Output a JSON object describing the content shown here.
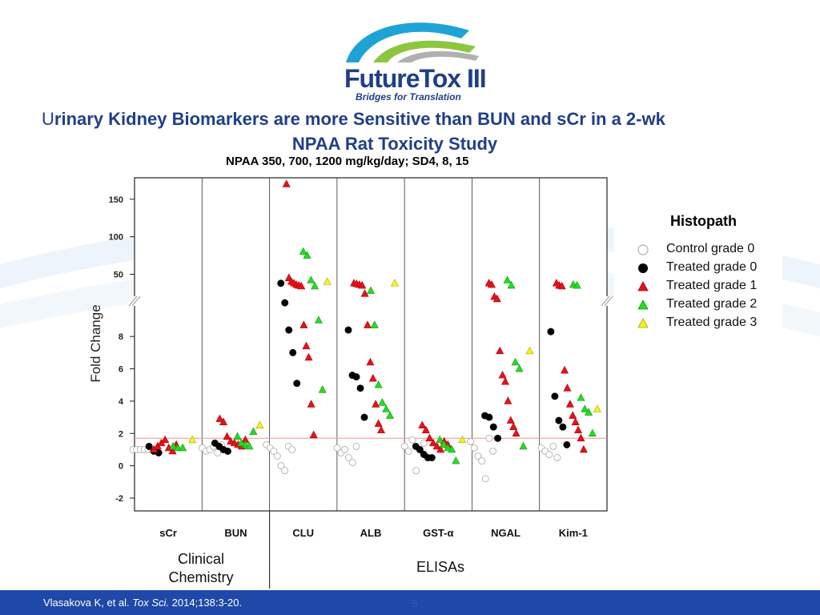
{
  "logo": {
    "name": "FutureTox III",
    "tagline": "Bridges for Translation"
  },
  "slide": {
    "title_initial": "U",
    "title_rest": "rinary Kidney Biomarkers are more Sensitive than BUN and sCr in a 2-wk",
    "title_line2": "NPAA Rat Toxicity Study",
    "subtitle": "NPAA 350, 700, 1200 mg/kg/day; SD4, 8, 15"
  },
  "legend": {
    "title": "Histopath",
    "items": [
      {
        "label": "Control grade  0",
        "shape": "circle",
        "fill": "#ffffff",
        "stroke": "#b0b0b0"
      },
      {
        "label": "Treated grade 0",
        "shape": "circle",
        "fill": "#000000",
        "stroke": "#000000"
      },
      {
        "label": "Treated grade 1",
        "shape": "triangle",
        "fill": "#e8101a",
        "stroke": "#b00000"
      },
      {
        "label": "Treated grade 2",
        "shape": "triangle",
        "fill": "#22dd22",
        "stroke": "#119911"
      },
      {
        "label": "Treated grade 3",
        "shape": "triangle",
        "fill": "#f5f51a",
        "stroke": "#b0a000"
      }
    ]
  },
  "groups": {
    "clinical": "Clinical\nChemistry",
    "elisa": "ELISAs"
  },
  "footer": {
    "citation_authors": "Vlasakova K, et al. ",
    "citation_journal": "Tox Sci.",
    "citation_rest": " 2014;138:3-20.",
    "page_number": "5"
  },
  "colors": {
    "accent_blue": "#1f3f87",
    "footer_blue": "#1f49a8",
    "threshold_line": "#f0a0a0"
  },
  "chart_data": {
    "type": "scatter",
    "title": "",
    "xlabel": "",
    "ylabel": "Fold Change",
    "categories": [
      "sCr",
      "BUN",
      "CLU",
      "ALB",
      "GST-α",
      "NGAL",
      "Kim-1"
    ],
    "y_axis": {
      "lower_segment": {
        "range": [
          -2,
          9
        ],
        "ticks": [
          -2,
          0,
          2,
          4,
          6,
          8
        ]
      },
      "upper_segment": {
        "range": [
          10,
          170
        ],
        "ticks": [
          50,
          100,
          150
        ]
      },
      "axis_break": true
    },
    "threshold_line": 1.7,
    "series": [
      {
        "name": "Control grade  0",
        "points": [
          {
            "c": 0,
            "y": 1.0
          },
          {
            "c": 0,
            "y": 1.0
          },
          {
            "c": 0,
            "y": 1.0
          },
          {
            "c": 0,
            "y": 1.0
          },
          {
            "c": 0,
            "y": 1.0
          },
          {
            "c": 0,
            "y": 1.0
          },
          {
            "c": 0,
            "y": 1.0
          },
          {
            "c": 1,
            "y": 1.1
          },
          {
            "c": 1,
            "y": 0.9
          },
          {
            "c": 1,
            "y": 1.0
          },
          {
            "c": 1,
            "y": 1.2
          },
          {
            "c": 1,
            "y": 0.8
          },
          {
            "c": 1,
            "y": 1.3
          },
          {
            "c": 2,
            "y": 1.3
          },
          {
            "c": 2,
            "y": 1.1
          },
          {
            "c": 2,
            "y": 0.9
          },
          {
            "c": 2,
            "y": 0.6
          },
          {
            "c": 2,
            "y": 0.0
          },
          {
            "c": 2,
            "y": -0.3
          },
          {
            "c": 2,
            "y": 1.2
          },
          {
            "c": 2,
            "y": 1.0
          },
          {
            "c": 3,
            "y": 1.1
          },
          {
            "c": 3,
            "y": 0.8
          },
          {
            "c": 3,
            "y": 1.0
          },
          {
            "c": 3,
            "y": 0.5
          },
          {
            "c": 3,
            "y": 0.2
          },
          {
            "c": 3,
            "y": 1.2
          },
          {
            "c": 4,
            "y": 1.2
          },
          {
            "c": 4,
            "y": 0.9
          },
          {
            "c": 4,
            "y": 1.6
          },
          {
            "c": 4,
            "y": -0.3
          },
          {
            "c": 4,
            "y": 1.0
          },
          {
            "c": 4,
            "y": 1.4
          },
          {
            "c": 5,
            "y": 1.5
          },
          {
            "c": 5,
            "y": 1.1
          },
          {
            "c": 5,
            "y": 0.6
          },
          {
            "c": 5,
            "y": 0.3
          },
          {
            "c": 5,
            "y": -0.8
          },
          {
            "c": 5,
            "y": 1.7
          },
          {
            "c": 5,
            "y": 0.9
          },
          {
            "c": 6,
            "y": 1.1
          },
          {
            "c": 6,
            "y": 0.9
          },
          {
            "c": 6,
            "y": 0.7
          },
          {
            "c": 6,
            "y": 1.2
          },
          {
            "c": 6,
            "y": 0.5
          }
        ]
      },
      {
        "name": "Treated grade 0",
        "points": [
          {
            "c": 0,
            "y": 1.2
          },
          {
            "c": 0,
            "y": 0.9
          },
          {
            "c": 0,
            "y": 0.8
          },
          {
            "c": 1,
            "y": 1.4
          },
          {
            "c": 1,
            "y": 1.2
          },
          {
            "c": 1,
            "y": 1.0
          },
          {
            "c": 1,
            "y": 0.9
          },
          {
            "c": 2,
            "y": 38
          },
          {
            "c": 2,
            "y": 12
          },
          {
            "c": 2,
            "y": 8.4
          },
          {
            "c": 2,
            "y": 7.0
          },
          {
            "c": 2,
            "y": 5.1
          },
          {
            "c": 3,
            "y": 8.4
          },
          {
            "c": 3,
            "y": 5.6
          },
          {
            "c": 3,
            "y": 5.5
          },
          {
            "c": 3,
            "y": 4.8
          },
          {
            "c": 3,
            "y": 3.0
          },
          {
            "c": 4,
            "y": 1.2
          },
          {
            "c": 4,
            "y": 1.0
          },
          {
            "c": 4,
            "y": 0.7
          },
          {
            "c": 4,
            "y": 0.5
          },
          {
            "c": 4,
            "y": 0.5
          },
          {
            "c": 5,
            "y": 3.1
          },
          {
            "c": 5,
            "y": 3.0
          },
          {
            "c": 5,
            "y": 2.4
          },
          {
            "c": 5,
            "y": 1.7
          },
          {
            "c": 6,
            "y": 8.3
          },
          {
            "c": 6,
            "y": 4.3
          },
          {
            "c": 6,
            "y": 2.8
          },
          {
            "c": 6,
            "y": 2.4
          },
          {
            "c": 6,
            "y": 1.3
          }
        ]
      },
      {
        "name": "Treated grade 1",
        "points": [
          {
            "c": 0,
            "y": 1.0
          },
          {
            "c": 0,
            "y": 1.2
          },
          {
            "c": 0,
            "y": 1.4
          },
          {
            "c": 0,
            "y": 1.6
          },
          {
            "c": 0,
            "y": 1.1
          },
          {
            "c": 0,
            "y": 0.9
          },
          {
            "c": 0,
            "y": 1.3
          },
          {
            "c": 1,
            "y": 2.9
          },
          {
            "c": 1,
            "y": 2.7
          },
          {
            "c": 1,
            "y": 1.8
          },
          {
            "c": 1,
            "y": 1.5
          },
          {
            "c": 1,
            "y": 1.4
          },
          {
            "c": 1,
            "y": 1.3
          },
          {
            "c": 1,
            "y": 1.2
          },
          {
            "c": 1,
            "y": 1.6
          },
          {
            "c": 2,
            "y": 170
          },
          {
            "c": 2,
            "y": 45
          },
          {
            "c": 2,
            "y": 40
          },
          {
            "c": 2,
            "y": 38
          },
          {
            "c": 2,
            "y": 36
          },
          {
            "c": 2,
            "y": 35
          },
          {
            "c": 2,
            "y": 34
          },
          {
            "c": 2,
            "y": 8.7
          },
          {
            "c": 2,
            "y": 7.4
          },
          {
            "c": 2,
            "y": 6.7
          },
          {
            "c": 2,
            "y": 3.8
          },
          {
            "c": 2,
            "y": 1.9
          },
          {
            "c": 3,
            "y": 38
          },
          {
            "c": 3,
            "y": 37
          },
          {
            "c": 3,
            "y": 36
          },
          {
            "c": 3,
            "y": 35
          },
          {
            "c": 3,
            "y": 24
          },
          {
            "c": 3,
            "y": 8.7
          },
          {
            "c": 3,
            "y": 6.4
          },
          {
            "c": 3,
            "y": 5.4
          },
          {
            "c": 3,
            "y": 3.8
          },
          {
            "c": 3,
            "y": 2.6
          },
          {
            "c": 3,
            "y": 2.2
          },
          {
            "c": 4,
            "y": 2.5
          },
          {
            "c": 4,
            "y": 2.2
          },
          {
            "c": 4,
            "y": 1.7
          },
          {
            "c": 4,
            "y": 1.4
          },
          {
            "c": 4,
            "y": 1.2
          },
          {
            "c": 4,
            "y": 1.0
          },
          {
            "c": 4,
            "y": 1.5
          },
          {
            "c": 4,
            "y": 1.3
          },
          {
            "c": 5,
            "y": 38
          },
          {
            "c": 5,
            "y": 36
          },
          {
            "c": 5,
            "y": 20
          },
          {
            "c": 5,
            "y": 17
          },
          {
            "c": 5,
            "y": 7.1
          },
          {
            "c": 5,
            "y": 5.6
          },
          {
            "c": 5,
            "y": 5.2
          },
          {
            "c": 5,
            "y": 4.0
          },
          {
            "c": 5,
            "y": 2.8
          },
          {
            "c": 5,
            "y": 2.4
          },
          {
            "c": 5,
            "y": 2.0
          },
          {
            "c": 6,
            "y": 38
          },
          {
            "c": 6,
            "y": 35
          },
          {
            "c": 6,
            "y": 34
          },
          {
            "c": 6,
            "y": 5.9
          },
          {
            "c": 6,
            "y": 4.8
          },
          {
            "c": 6,
            "y": 3.8
          },
          {
            "c": 6,
            "y": 3.1
          },
          {
            "c": 6,
            "y": 2.7
          },
          {
            "c": 6,
            "y": 2.2
          },
          {
            "c": 6,
            "y": 1.7
          },
          {
            "c": 6,
            "y": 1.0
          }
        ]
      },
      {
        "name": "Treated grade 2",
        "points": [
          {
            "c": 0,
            "y": 1.2
          },
          {
            "c": 0,
            "y": 1.1
          },
          {
            "c": 0,
            "y": 1.1
          },
          {
            "c": 1,
            "y": 1.8
          },
          {
            "c": 1,
            "y": 1.4
          },
          {
            "c": 1,
            "y": 1.3
          },
          {
            "c": 1,
            "y": 1.2
          },
          {
            "c": 1,
            "y": 2.1
          },
          {
            "c": 2,
            "y": 80
          },
          {
            "c": 2,
            "y": 75
          },
          {
            "c": 2,
            "y": 42
          },
          {
            "c": 2,
            "y": 34
          },
          {
            "c": 2,
            "y": 9.0
          },
          {
            "c": 2,
            "y": 4.7
          },
          {
            "c": 3,
            "y": 28
          },
          {
            "c": 3,
            "y": 8.7
          },
          {
            "c": 3,
            "y": 5.0
          },
          {
            "c": 3,
            "y": 3.9
          },
          {
            "c": 3,
            "y": 3.5
          },
          {
            "c": 3,
            "y": 3.1
          },
          {
            "c": 4,
            "y": 1.6
          },
          {
            "c": 4,
            "y": 1.3
          },
          {
            "c": 4,
            "y": 1.1
          },
          {
            "c": 4,
            "y": 1.0
          },
          {
            "c": 4,
            "y": 0.3
          },
          {
            "c": 5,
            "y": 42
          },
          {
            "c": 5,
            "y": 35
          },
          {
            "c": 5,
            "y": 6.4
          },
          {
            "c": 5,
            "y": 6.0
          },
          {
            "c": 5,
            "y": 1.2
          },
          {
            "c": 6,
            "y": 36
          },
          {
            "c": 6,
            "y": 35
          },
          {
            "c": 6,
            "y": 4.2
          },
          {
            "c": 6,
            "y": 3.5
          },
          {
            "c": 6,
            "y": 3.3
          },
          {
            "c": 6,
            "y": 2.0
          }
        ]
      },
      {
        "name": "Treated grade 3",
        "points": [
          {
            "c": 0,
            "y": 1.6
          },
          {
            "c": 1,
            "y": 2.5
          },
          {
            "c": 2,
            "y": 40
          },
          {
            "c": 3,
            "y": 38
          },
          {
            "c": 4,
            "y": 1.6
          },
          {
            "c": 5,
            "y": 7.1
          },
          {
            "c": 6,
            "y": 3.5
          }
        ]
      }
    ]
  }
}
